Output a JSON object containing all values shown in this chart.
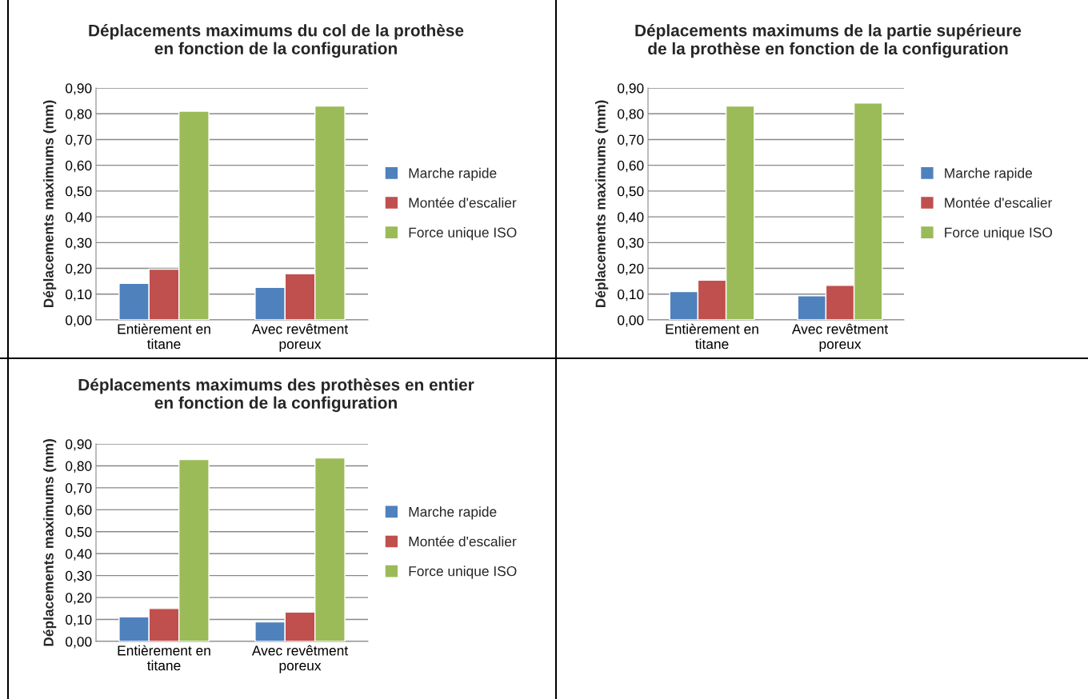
{
  "chart_data": [
    {
      "type": "bar",
      "title": "Déplacements maximums du col de la prothèse\nen fonction de la configuration",
      "ylabel": "Déplacements maximums (mm)",
      "categories": [
        "Entièrement en\ntitane",
        "Avec revêtment\nporeux"
      ],
      "series": [
        {
          "name": "Marche rapide",
          "color": "#4f81bd",
          "values": [
            0.142,
            0.126
          ]
        },
        {
          "name": "Montée d'escalier",
          "color": "#c0504d",
          "values": [
            0.197,
            0.179
          ]
        },
        {
          "name": "Force unique ISO",
          "color": "#9bbb59",
          "values": [
            0.81,
            0.83
          ]
        }
      ],
      "ylim": [
        0,
        0.9
      ],
      "yticks": [
        {
          "value": 0,
          "label": "0,00"
        },
        {
          "value": 0.1,
          "label": "0,10"
        },
        {
          "value": 0.2,
          "label": "0,20"
        },
        {
          "value": 0.3,
          "label": "0,30"
        },
        {
          "value": 0.4,
          "label": "0,40"
        },
        {
          "value": 0.5,
          "label": "0,50"
        },
        {
          "value": 0.6,
          "label": "0,60"
        },
        {
          "value": 0.7,
          "label": "0,70"
        },
        {
          "value": 0.8,
          "label": "0,80"
        },
        {
          "value": 0.9,
          "label": "0,90"
        }
      ],
      "grid": "y",
      "legend": "right"
    },
    {
      "type": "bar",
      "title": "Déplacements maximums de la partie supérieure\nde la prothèse en fonction de la configuration",
      "ylabel": "Déplacements maximums (mm)",
      "categories": [
        "Entièrement en\ntitane",
        "Avec revêtment\nporeux"
      ],
      "series": [
        {
          "name": "Marche rapide",
          "color": "#4f81bd",
          "values": [
            0.11,
            0.094
          ]
        },
        {
          "name": "Montée d'escalier",
          "color": "#c0504d",
          "values": [
            0.154,
            0.134
          ]
        },
        {
          "name": "Force unique ISO",
          "color": "#9bbb59",
          "values": [
            0.83,
            0.842
          ]
        }
      ],
      "ylim": [
        0,
        0.9
      ],
      "yticks": [
        {
          "value": 0,
          "label": "0,00"
        },
        {
          "value": 0.1,
          "label": "0,10"
        },
        {
          "value": 0.2,
          "label": "0,20"
        },
        {
          "value": 0.3,
          "label": "0,30"
        },
        {
          "value": 0.4,
          "label": "0,40"
        },
        {
          "value": 0.5,
          "label": "0,50"
        },
        {
          "value": 0.6,
          "label": "0,60"
        },
        {
          "value": 0.7,
          "label": "0,70"
        },
        {
          "value": 0.8,
          "label": "0,80"
        },
        {
          "value": 0.9,
          "label": "0,90"
        }
      ],
      "grid": "y",
      "legend": "right"
    },
    {
      "type": "bar",
      "title": "Déplacements maximums des prothèses en entier\nen fonction de la configuration",
      "ylabel": "Déplacements maximums (mm)",
      "categories": [
        "Entièrement en\ntitane",
        "Avec revêtment\nporeux"
      ],
      "series": [
        {
          "name": "Marche rapide",
          "color": "#4f81bd",
          "values": [
            0.112,
            0.089
          ]
        },
        {
          "name": "Montée d'escalier",
          "color": "#c0504d",
          "values": [
            0.15,
            0.134
          ]
        },
        {
          "name": "Force unique ISO",
          "color": "#9bbb59",
          "values": [
            0.829,
            0.836
          ]
        }
      ],
      "ylim": [
        0,
        0.9
      ],
      "yticks": [
        {
          "value": 0,
          "label": "0,00"
        },
        {
          "value": 0.1,
          "label": "0,10"
        },
        {
          "value": 0.2,
          "label": "0,20"
        },
        {
          "value": 0.3,
          "label": "0,30"
        },
        {
          "value": 0.4,
          "label": "0,40"
        },
        {
          "value": 0.5,
          "label": "0,50"
        },
        {
          "value": 0.6,
          "label": "0,60"
        },
        {
          "value": 0.7,
          "label": "0,70"
        },
        {
          "value": 0.8,
          "label": "0,80"
        },
        {
          "value": 0.9,
          "label": "0,90"
        }
      ],
      "grid": "y",
      "legend": "right"
    }
  ]
}
